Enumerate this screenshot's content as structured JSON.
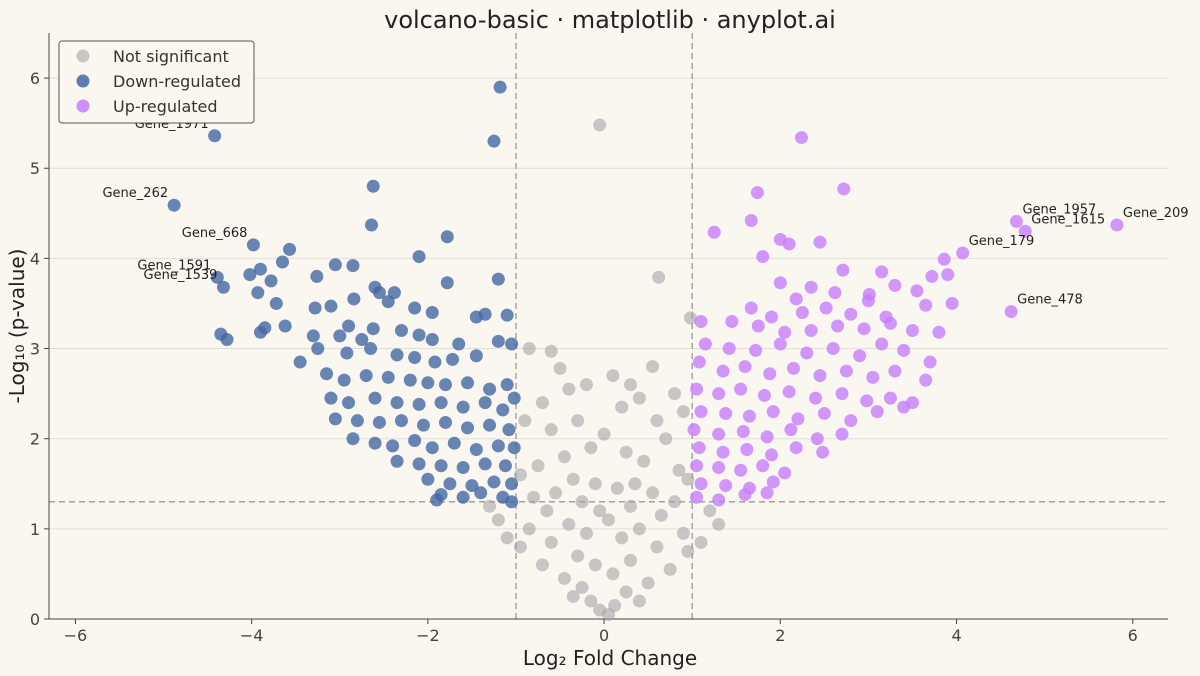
{
  "chart_data": {
    "type": "scatter",
    "title": "volcano-basic · matplotlib · anyplot.ai",
    "xlabel": "Log₂ Fold Change",
    "ylabel": "-Log₁₀ (p-value)",
    "xlim": [
      -6.3,
      6.4
    ],
    "ylim": [
      0,
      6.5
    ],
    "xticks": [
      -6,
      -4,
      -2,
      0,
      2,
      4,
      6
    ],
    "yticks": [
      0,
      1,
      2,
      3,
      4,
      5,
      6
    ],
    "xtick_labels": [
      "−6",
      "−4",
      "−2",
      "0",
      "2",
      "4",
      "6"
    ],
    "ytick_labels": [
      "0",
      "1",
      "2",
      "3",
      "4",
      "5",
      "6"
    ],
    "grid": "horizontal",
    "legend_position": "top-left",
    "thresholds": {
      "fold_change": [
        -1,
        1
      ],
      "p_value": 1.3
    },
    "series": [
      {
        "name": "Not significant",
        "color": "#9E9E9E",
        "points": [
          [
            -0.05,
            5.48
          ],
          [
            0.62,
            3.79
          ],
          [
            0.98,
            3.34
          ],
          [
            -0.85,
            3.0
          ],
          [
            -0.6,
            2.97
          ],
          [
            -0.5,
            2.78
          ],
          [
            -0.4,
            2.55
          ],
          [
            -0.2,
            2.6
          ],
          [
            0.1,
            2.7
          ],
          [
            0.3,
            2.6
          ],
          [
            0.4,
            2.45
          ],
          [
            0.55,
            2.8
          ],
          [
            -0.7,
            2.4
          ],
          [
            0.8,
            2.5
          ],
          [
            0.9,
            2.3
          ],
          [
            -0.9,
            2.2
          ],
          [
            -0.3,
            2.2
          ],
          [
            0.2,
            2.35
          ],
          [
            0.6,
            2.2
          ],
          [
            -0.6,
            2.1
          ],
          [
            0.7,
            2.0
          ],
          [
            0.0,
            2.05
          ],
          [
            -0.15,
            1.9
          ],
          [
            0.25,
            1.85
          ],
          [
            -0.45,
            1.8
          ],
          [
            0.45,
            1.75
          ],
          [
            -0.75,
            1.7
          ],
          [
            0.85,
            1.65
          ],
          [
            -0.95,
            1.6
          ],
          [
            0.95,
            1.55
          ],
          [
            -0.35,
            1.55
          ],
          [
            0.35,
            1.5
          ],
          [
            -0.1,
            1.5
          ],
          [
            0.15,
            1.45
          ],
          [
            -0.55,
            1.4
          ],
          [
            0.55,
            1.4
          ],
          [
            -0.8,
            1.35
          ],
          [
            0.8,
            1.3
          ],
          [
            -0.25,
            1.3
          ],
          [
            0.3,
            1.25
          ],
          [
            -0.65,
            1.2
          ],
          [
            0.65,
            1.15
          ],
          [
            -0.05,
            1.2
          ],
          [
            0.05,
            1.1
          ],
          [
            -0.4,
            1.05
          ],
          [
            0.4,
            1.0
          ],
          [
            -0.85,
            1.0
          ],
          [
            0.9,
            0.95
          ],
          [
            -0.2,
            0.95
          ],
          [
            0.2,
            0.9
          ],
          [
            -0.6,
            0.85
          ],
          [
            0.6,
            0.8
          ],
          [
            -0.95,
            0.8
          ],
          [
            0.95,
            0.75
          ],
          [
            -0.3,
            0.7
          ],
          [
            0.3,
            0.65
          ],
          [
            -0.7,
            0.6
          ],
          [
            0.75,
            0.55
          ],
          [
            -0.1,
            0.6
          ],
          [
            0.1,
            0.5
          ],
          [
            -0.45,
            0.45
          ],
          [
            0.5,
            0.4
          ],
          [
            -0.25,
            0.35
          ],
          [
            0.25,
            0.3
          ],
          [
            -0.15,
            0.2
          ],
          [
            0.12,
            0.15
          ],
          [
            -0.05,
            0.1
          ],
          [
            0.05,
            0.05
          ],
          [
            -0.35,
            0.25
          ],
          [
            0.4,
            0.2
          ],
          [
            -1.3,
            1.25
          ],
          [
            1.2,
            1.2
          ],
          [
            -1.1,
            0.9
          ],
          [
            1.1,
            0.85
          ],
          [
            -1.2,
            1.1
          ],
          [
            1.3,
            1.05
          ]
        ]
      },
      {
        "name": "Down-regulated",
        "color": "#4467A3",
        "points": [
          [
            -1.18,
            5.9
          ],
          [
            -1.25,
            5.3
          ],
          [
            -4.42,
            5.36
          ],
          [
            -2.62,
            4.8
          ],
          [
            -4.88,
            4.59
          ],
          [
            -2.64,
            4.37
          ],
          [
            -1.78,
            4.24
          ],
          [
            -3.98,
            4.15
          ],
          [
            -3.57,
            4.1
          ],
          [
            -2.1,
            4.02
          ],
          [
            -3.65,
            3.96
          ],
          [
            -3.05,
            3.93
          ],
          [
            -2.85,
            3.92
          ],
          [
            -3.9,
            3.88
          ],
          [
            -3.26,
            3.8
          ],
          [
            -4.02,
            3.82
          ],
          [
            -4.39,
            3.79
          ],
          [
            -3.78,
            3.75
          ],
          [
            -1.78,
            3.73
          ],
          [
            -1.2,
            3.77
          ],
          [
            -4.32,
            3.68
          ],
          [
            -2.6,
            3.68
          ],
          [
            -2.38,
            3.62
          ],
          [
            -3.93,
            3.62
          ],
          [
            -2.84,
            3.55
          ],
          [
            -2.55,
            3.62
          ],
          [
            -3.72,
            3.5
          ],
          [
            -3.1,
            3.47
          ],
          [
            -2.15,
            3.45
          ],
          [
            -3.28,
            3.45
          ],
          [
            -1.35,
            3.38
          ],
          [
            -1.1,
            3.37
          ],
          [
            -1.45,
            3.35
          ],
          [
            -1.95,
            3.4
          ],
          [
            -2.45,
            3.52
          ],
          [
            -3.62,
            3.25
          ],
          [
            -3.85,
            3.23
          ],
          [
            -4.35,
            3.16
          ],
          [
            -3.9,
            3.18
          ],
          [
            -4.28,
            3.1
          ],
          [
            -2.9,
            3.25
          ],
          [
            -2.62,
            3.22
          ],
          [
            -2.3,
            3.2
          ],
          [
            -3.3,
            3.14
          ],
          [
            -3.0,
            3.14
          ],
          [
            -2.75,
            3.1
          ],
          [
            -2.1,
            3.15
          ],
          [
            -1.95,
            3.1
          ],
          [
            -1.65,
            3.05
          ],
          [
            -1.2,
            3.08
          ],
          [
            -1.05,
            3.05
          ],
          [
            -3.45,
            2.85
          ],
          [
            -3.25,
            3.0
          ],
          [
            -2.92,
            2.95
          ],
          [
            -2.65,
            3.0
          ],
          [
            -2.35,
            2.93
          ],
          [
            -2.15,
            2.9
          ],
          [
            -1.92,
            2.85
          ],
          [
            -1.72,
            2.88
          ],
          [
            -1.45,
            2.92
          ],
          [
            -3.15,
            2.72
          ],
          [
            -2.95,
            2.65
          ],
          [
            -2.7,
            2.7
          ],
          [
            -2.45,
            2.68
          ],
          [
            -2.2,
            2.65
          ],
          [
            -2.0,
            2.62
          ],
          [
            -1.8,
            2.6
          ],
          [
            -1.55,
            2.62
          ],
          [
            -1.3,
            2.55
          ],
          [
            -1.1,
            2.6
          ],
          [
            -3.1,
            2.45
          ],
          [
            -2.9,
            2.4
          ],
          [
            -2.6,
            2.45
          ],
          [
            -2.35,
            2.4
          ],
          [
            -2.1,
            2.38
          ],
          [
            -1.85,
            2.4
          ],
          [
            -1.6,
            2.35
          ],
          [
            -1.35,
            2.4
          ],
          [
            -1.15,
            2.32
          ],
          [
            -1.02,
            2.45
          ],
          [
            -3.05,
            2.22
          ],
          [
            -2.8,
            2.2
          ],
          [
            -2.55,
            2.18
          ],
          [
            -2.3,
            2.2
          ],
          [
            -2.05,
            2.15
          ],
          [
            -1.8,
            2.18
          ],
          [
            -1.55,
            2.12
          ],
          [
            -1.3,
            2.15
          ],
          [
            -1.08,
            2.1
          ],
          [
            -2.85,
            2.0
          ],
          [
            -2.6,
            1.95
          ],
          [
            -2.4,
            1.92
          ],
          [
            -2.15,
            1.98
          ],
          [
            -1.95,
            1.9
          ],
          [
            -1.7,
            1.95
          ],
          [
            -1.45,
            1.88
          ],
          [
            -1.2,
            1.92
          ],
          [
            -1.02,
            1.9
          ],
          [
            -2.35,
            1.75
          ],
          [
            -2.1,
            1.72
          ],
          [
            -1.85,
            1.7
          ],
          [
            -1.6,
            1.68
          ],
          [
            -1.35,
            1.72
          ],
          [
            -1.12,
            1.7
          ],
          [
            -2.0,
            1.55
          ],
          [
            -1.75,
            1.5
          ],
          [
            -1.5,
            1.48
          ],
          [
            -1.25,
            1.52
          ],
          [
            -1.05,
            1.5
          ],
          [
            -1.85,
            1.38
          ],
          [
            -1.6,
            1.35
          ],
          [
            -1.4,
            1.4
          ],
          [
            -1.15,
            1.35
          ],
          [
            -1.05,
            1.3
          ],
          [
            -1.9,
            1.32
          ]
        ]
      },
      {
        "name": "Up-regulated",
        "color": "#C77DFF",
        "points": [
          [
            2.24,
            5.34
          ],
          [
            2.72,
            4.77
          ],
          [
            1.74,
            4.73
          ],
          [
            5.82,
            4.37
          ],
          [
            4.78,
            4.3
          ],
          [
            4.68,
            4.41
          ],
          [
            1.25,
            4.29
          ],
          [
            1.67,
            4.42
          ],
          [
            2.0,
            4.21
          ],
          [
            2.1,
            4.16
          ],
          [
            2.45,
            4.18
          ],
          [
            4.07,
            4.06
          ],
          [
            1.8,
            4.02
          ],
          [
            2.71,
            3.87
          ],
          [
            3.86,
            3.99
          ],
          [
            3.72,
            3.8
          ],
          [
            3.9,
            3.82
          ],
          [
            3.15,
            3.85
          ],
          [
            2.0,
            3.73
          ],
          [
            2.35,
            3.68
          ],
          [
            3.3,
            3.7
          ],
          [
            3.55,
            3.64
          ],
          [
            2.62,
            3.62
          ],
          [
            3.01,
            3.6
          ],
          [
            2.18,
            3.55
          ],
          [
            3.0,
            3.53
          ],
          [
            3.65,
            3.48
          ],
          [
            3.95,
            3.5
          ],
          [
            4.62,
            3.41
          ],
          [
            1.67,
            3.45
          ],
          [
            1.9,
            3.35
          ],
          [
            2.25,
            3.4
          ],
          [
            2.52,
            3.45
          ],
          [
            2.8,
            3.38
          ],
          [
            3.2,
            3.35
          ],
          [
            1.1,
            3.3
          ],
          [
            1.45,
            3.3
          ],
          [
            1.75,
            3.25
          ],
          [
            2.05,
            3.18
          ],
          [
            2.35,
            3.2
          ],
          [
            2.65,
            3.25
          ],
          [
            2.95,
            3.22
          ],
          [
            3.25,
            3.28
          ],
          [
            3.5,
            3.2
          ],
          [
            3.8,
            3.18
          ],
          [
            1.15,
            3.05
          ],
          [
            1.42,
            3.0
          ],
          [
            1.72,
            2.98
          ],
          [
            2.0,
            3.05
          ],
          [
            2.3,
            2.95
          ],
          [
            2.6,
            3.0
          ],
          [
            2.9,
            2.92
          ],
          [
            3.15,
            3.05
          ],
          [
            3.4,
            2.98
          ],
          [
            3.7,
            2.85
          ],
          [
            1.08,
            2.85
          ],
          [
            1.35,
            2.75
          ],
          [
            1.6,
            2.8
          ],
          [
            1.88,
            2.72
          ],
          [
            2.15,
            2.78
          ],
          [
            2.45,
            2.7
          ],
          [
            2.75,
            2.75
          ],
          [
            3.05,
            2.68
          ],
          [
            3.3,
            2.75
          ],
          [
            3.65,
            2.65
          ],
          [
            1.05,
            2.55
          ],
          [
            1.3,
            2.5
          ],
          [
            1.55,
            2.55
          ],
          [
            1.82,
            2.48
          ],
          [
            2.1,
            2.52
          ],
          [
            2.4,
            2.45
          ],
          [
            2.7,
            2.5
          ],
          [
            2.98,
            2.42
          ],
          [
            3.25,
            2.45
          ],
          [
            3.5,
            2.4
          ],
          [
            1.1,
            2.3
          ],
          [
            1.38,
            2.28
          ],
          [
            1.65,
            2.25
          ],
          [
            1.92,
            2.3
          ],
          [
            2.2,
            2.22
          ],
          [
            2.5,
            2.28
          ],
          [
            2.8,
            2.2
          ],
          [
            3.1,
            2.3
          ],
          [
            3.4,
            2.35
          ],
          [
            1.02,
            2.1
          ],
          [
            1.3,
            2.05
          ],
          [
            1.58,
            2.08
          ],
          [
            1.85,
            2.02
          ],
          [
            2.12,
            2.1
          ],
          [
            2.42,
            2.0
          ],
          [
            2.7,
            2.05
          ],
          [
            1.08,
            1.9
          ],
          [
            1.35,
            1.85
          ],
          [
            1.62,
            1.88
          ],
          [
            1.9,
            1.82
          ],
          [
            2.18,
            1.9
          ],
          [
            2.48,
            1.85
          ],
          [
            1.05,
            1.7
          ],
          [
            1.3,
            1.68
          ],
          [
            1.55,
            1.65
          ],
          [
            1.8,
            1.7
          ],
          [
            2.05,
            1.62
          ],
          [
            1.1,
            1.5
          ],
          [
            1.38,
            1.48
          ],
          [
            1.65,
            1.45
          ],
          [
            1.92,
            1.52
          ],
          [
            1.05,
            1.35
          ],
          [
            1.3,
            1.32
          ],
          [
            1.6,
            1.38
          ],
          [
            1.85,
            1.4
          ]
        ]
      }
    ],
    "annotations": [
      {
        "text": "Gene_1971",
        "x": -4.42,
        "y": 5.36
      },
      {
        "text": "Gene_262",
        "x": -4.88,
        "y": 4.59
      },
      {
        "text": "Gene_668",
        "x": -3.98,
        "y": 4.15
      },
      {
        "text": "Gene_1591",
        "x": -4.39,
        "y": 3.79
      },
      {
        "text": "Gene_1539",
        "x": -4.32,
        "y": 3.68
      },
      {
        "text": "Gene_1957",
        "x": 4.68,
        "y": 4.41
      },
      {
        "text": "Gene_1615",
        "x": 4.78,
        "y": 4.3
      },
      {
        "text": "Gene_209",
        "x": 5.82,
        "y": 4.37
      },
      {
        "text": "Gene_179",
        "x": 4.07,
        "y": 4.06
      },
      {
        "text": "Gene_478",
        "x": 4.62,
        "y": 3.41
      }
    ]
  }
}
